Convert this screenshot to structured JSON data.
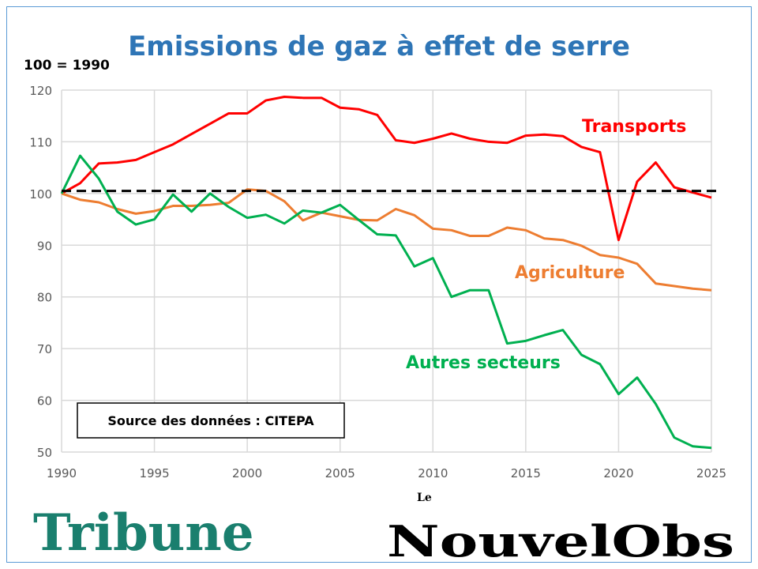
{
  "chart_data": {
    "type": "line",
    "title": "Emissions de gaz à effet de serre",
    "ylabel": "100 = 1990",
    "xlim": [
      1990,
      2025
    ],
    "ylim": [
      50,
      120
    ],
    "xticks": [
      1990,
      1995,
      2000,
      2005,
      2010,
      2015,
      2020,
      2025
    ],
    "yticks": [
      50,
      60,
      70,
      80,
      90,
      100,
      110,
      120
    ],
    "grid": true,
    "reference_line": {
      "y": 100.5,
      "style": "dashed",
      "color": "#000000"
    },
    "x": [
      1990,
      1991,
      1992,
      1993,
      1994,
      1995,
      1996,
      1997,
      1998,
      1999,
      2000,
      2001,
      2002,
      2003,
      2004,
      2005,
      2006,
      2007,
      2008,
      2009,
      2010,
      2011,
      2012,
      2013,
      2014,
      2015,
      2016,
      2017,
      2018,
      2019,
      2020,
      2021,
      2022,
      2023,
      2024,
      2025
    ],
    "series": [
      {
        "name": "Transports",
        "color": "#ff0000",
        "values": [
          100,
          102,
          105.8,
          106,
          106.5,
          108,
          109.5,
          111.5,
          113.5,
          115.5,
          115.5,
          118,
          118.7,
          118.5,
          118.5,
          116.6,
          116.3,
          115.2,
          110.3,
          109.8,
          110.6,
          111.6,
          110.6,
          110,
          109.8,
          111.2,
          111.4,
          111.1,
          109,
          108,
          91,
          102.3,
          106,
          101.2,
          100.2,
          99.2
        ]
      },
      {
        "name": "Agriculture",
        "color": "#ed7d31",
        "values": [
          100,
          98.8,
          98.3,
          97,
          96.1,
          96.6,
          97.6,
          97.6,
          97.8,
          98.2,
          100.8,
          100.5,
          98.5,
          94.8,
          96.3,
          95.6,
          94.9,
          94.8,
          97,
          95.8,
          93.2,
          92.9,
          91.8,
          91.8,
          93.4,
          92.9,
          91.3,
          91,
          89.9,
          88.1,
          87.6,
          86.4,
          82.6,
          82.1,
          81.6,
          81.3
        ]
      },
      {
        "name": "Autres secteurs",
        "color": "#00b050",
        "values": [
          100,
          107.3,
          102.9,
          96.5,
          94,
          95,
          99.8,
          96.5,
          100,
          97.4,
          95.3,
          95.9,
          94.2,
          96.7,
          96.3,
          97.8,
          94.9,
          92.1,
          91.9,
          85.9,
          87.5,
          80,
          81.3,
          81.3,
          71,
          71.5,
          72.6,
          73.6,
          68.8,
          67,
          61.2,
          64.4,
          59.3,
          52.8,
          51.1,
          50.8
        ]
      }
    ],
    "annotation": "Source des données : CITEPA"
  },
  "logos": {
    "left": "Tribune",
    "right": "Le Nouvel Obs",
    "right_small": "Le",
    "right_main": "NouvelObs"
  },
  "colors": {
    "title": "#2e75b6",
    "tribune": "#1a7f6e",
    "frame": "#5b9bd5"
  }
}
